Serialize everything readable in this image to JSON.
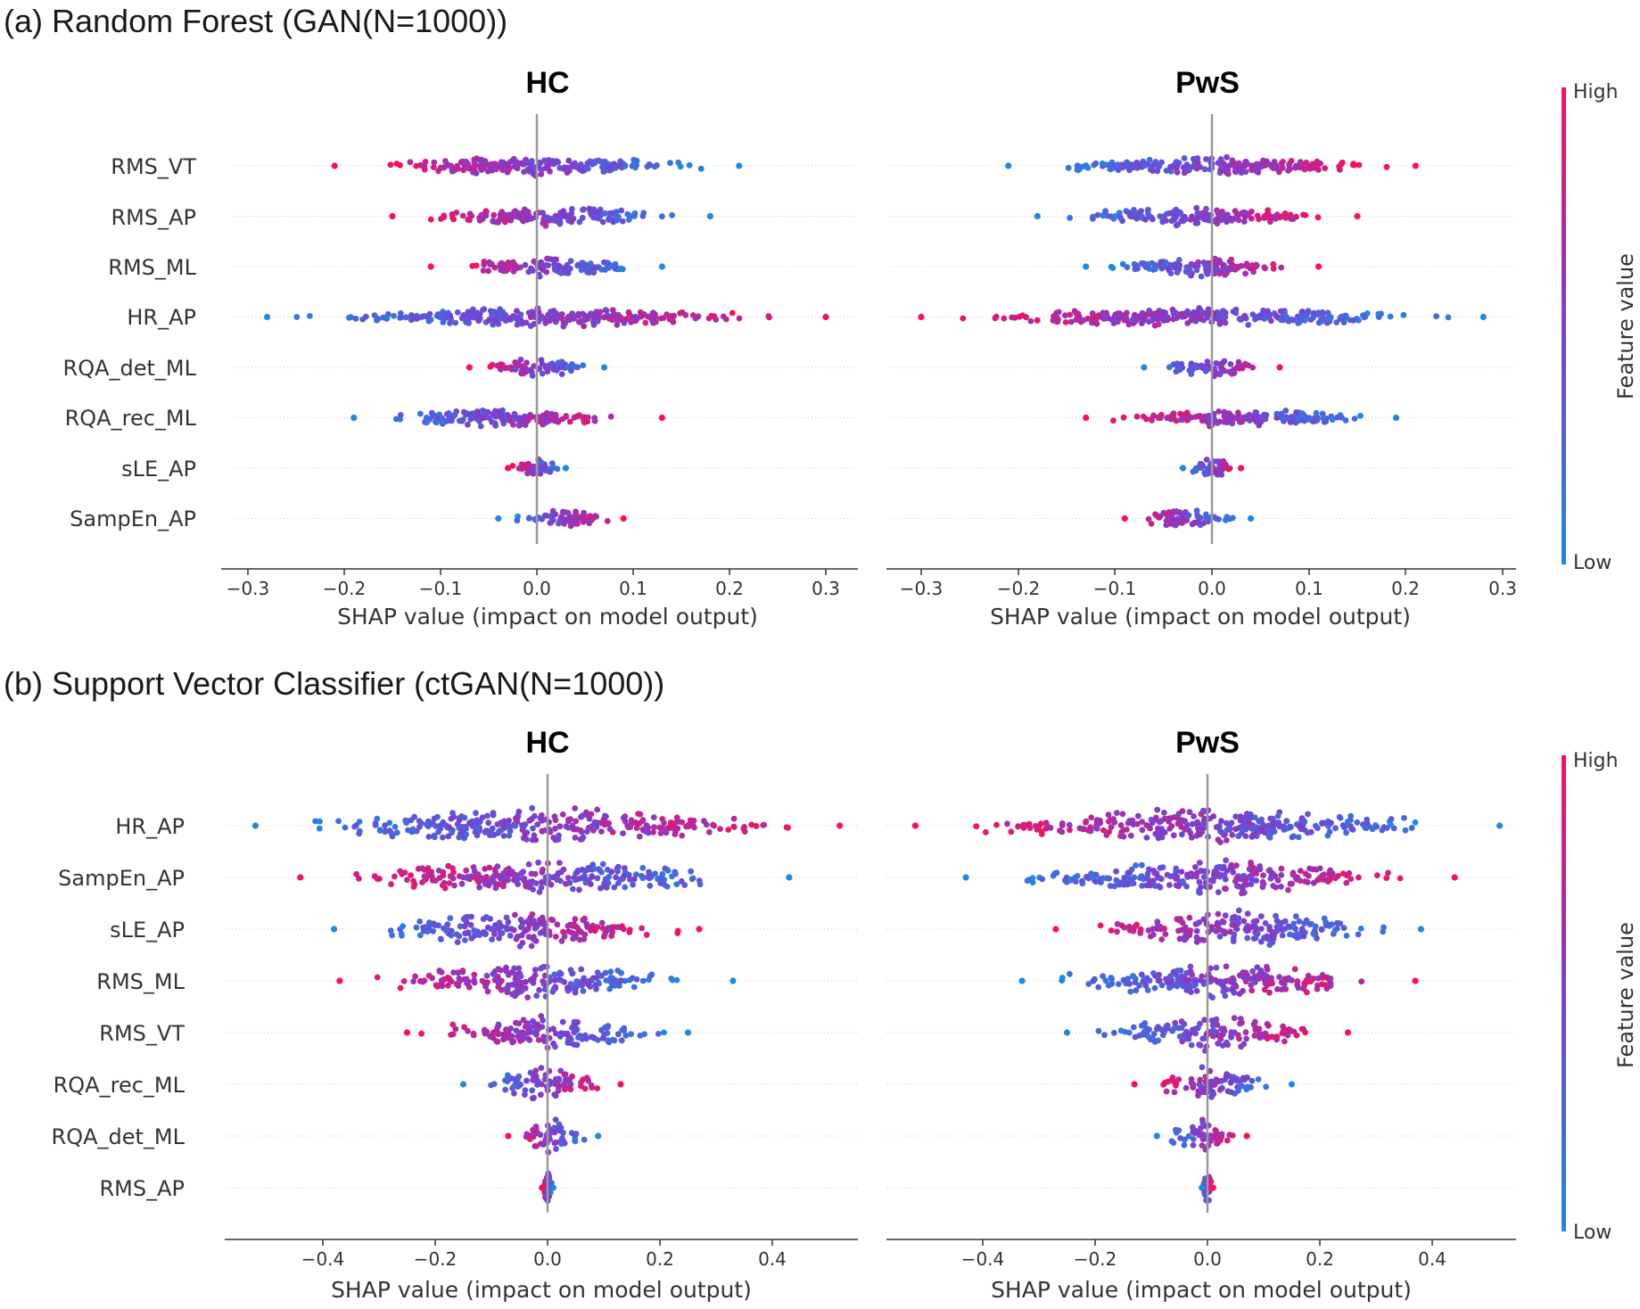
{
  "colors": {
    "low": "#1E88E5",
    "mid": "#7B3FD1",
    "high": "#FF0D57",
    "zero_line": "#999999",
    "grid": "#cccccc"
  },
  "chart_data": [
    {
      "type": "scatter",
      "section": "a",
      "section_title": "(a) Random Forest (GAN(N=1000))",
      "title": "HC",
      "xlabel": "SHAP value (impact on model output)",
      "xlim": [
        -0.3,
        0.3
      ],
      "xticks": [
        "−0.3",
        "−0.2",
        "−0.1",
        "0.0",
        "0.1",
        "0.2",
        "0.3"
      ],
      "features": [
        {
          "name": "RMS_VT",
          "left_value": -0.21,
          "right_value": 0.21,
          "left_color": "high",
          "right_color": "low"
        },
        {
          "name": "RMS_AP",
          "left_value": -0.15,
          "right_value": 0.18,
          "left_color": "high",
          "right_color": "low"
        },
        {
          "name": "RMS_ML",
          "left_value": -0.11,
          "right_value": 0.13,
          "left_color": "high",
          "right_color": "low"
        },
        {
          "name": "HR_AP",
          "left_value": -0.28,
          "right_value": 0.3,
          "left_color": "low",
          "right_color": "high"
        },
        {
          "name": "RQA_det_ML",
          "left_value": -0.07,
          "right_value": 0.07,
          "left_color": "high",
          "right_color": "low"
        },
        {
          "name": "RQA_rec_ML",
          "left_value": -0.19,
          "right_value": 0.13,
          "left_color": "low",
          "right_color": "high"
        },
        {
          "name": "sLE_AP",
          "left_value": -0.03,
          "right_value": 0.03,
          "left_color": "high",
          "right_color": "low"
        },
        {
          "name": "SampEn_AP",
          "left_value": -0.04,
          "right_value": 0.09,
          "left_color": "low",
          "right_color": "high"
        }
      ],
      "colorbar": {
        "title": "Feature value",
        "high": "High",
        "low": "Low"
      }
    },
    {
      "type": "scatter",
      "section": "a",
      "title": "PwS",
      "xlabel": "SHAP value (impact on model output)",
      "xlim": [
        -0.3,
        0.3
      ],
      "xticks": [
        "−0.3",
        "−0.2",
        "−0.1",
        "0.0",
        "0.1",
        "0.2",
        "0.3"
      ],
      "features": [
        {
          "name": "RMS_VT",
          "left_value": -0.21,
          "right_value": 0.21,
          "left_color": "low",
          "right_color": "high"
        },
        {
          "name": "RMS_AP",
          "left_value": -0.18,
          "right_value": 0.15,
          "left_color": "low",
          "right_color": "high"
        },
        {
          "name": "RMS_ML",
          "left_value": -0.13,
          "right_value": 0.11,
          "left_color": "low",
          "right_color": "high"
        },
        {
          "name": "HR_AP",
          "left_value": -0.3,
          "right_value": 0.28,
          "left_color": "high",
          "right_color": "low"
        },
        {
          "name": "RQA_det_ML",
          "left_value": -0.07,
          "right_value": 0.07,
          "left_color": "low",
          "right_color": "high"
        },
        {
          "name": "RQA_rec_ML",
          "left_value": -0.13,
          "right_value": 0.19,
          "left_color": "high",
          "right_color": "low"
        },
        {
          "name": "sLE_AP",
          "left_value": -0.03,
          "right_value": 0.03,
          "left_color": "low",
          "right_color": "high"
        },
        {
          "name": "SampEn_AP",
          "left_value": -0.09,
          "right_value": 0.04,
          "left_color": "high",
          "right_color": "low"
        }
      ],
      "colorbar": {
        "title": "Feature value",
        "high": "High",
        "low": "Low"
      }
    },
    {
      "type": "scatter",
      "section": "b",
      "section_title": "(b) Support Vector Classifier (ctGAN(N=1000))",
      "title": "HC",
      "xlabel": "SHAP value (impact on model output)",
      "xlim": [
        -0.6,
        0.55
      ],
      "xticks": [
        "−0.4",
        "−0.2",
        "0.0",
        "0.2",
        "0.4"
      ],
      "features": [
        {
          "name": "HR_AP",
          "left_value": -0.52,
          "right_value": 0.52,
          "left_color": "low",
          "right_color": "high"
        },
        {
          "name": "SampEn_AP",
          "left_value": -0.44,
          "right_value": 0.43,
          "left_color": "high",
          "right_color": "low"
        },
        {
          "name": "sLE_AP",
          "left_value": -0.38,
          "right_value": 0.27,
          "left_color": "low",
          "right_color": "high"
        },
        {
          "name": "RMS_ML",
          "left_value": -0.37,
          "right_value": 0.33,
          "left_color": "high",
          "right_color": "low"
        },
        {
          "name": "RMS_VT",
          "left_value": -0.25,
          "right_value": 0.25,
          "left_color": "high",
          "right_color": "low"
        },
        {
          "name": "RQA_rec_ML",
          "left_value": -0.15,
          "right_value": 0.13,
          "left_color": "low",
          "right_color": "high"
        },
        {
          "name": "RQA_det_ML",
          "left_value": -0.07,
          "right_value": 0.09,
          "left_color": "high",
          "right_color": "low"
        },
        {
          "name": "RMS_AP",
          "left_value": -0.01,
          "right_value": 0.01,
          "left_color": "high",
          "right_color": "low"
        }
      ],
      "colorbar": {
        "title": "Feature value",
        "high": "High",
        "low": "Low"
      }
    },
    {
      "type": "scatter",
      "section": "b",
      "title": "PwS",
      "xlabel": "SHAP value (impact on model output)",
      "xlim": [
        -0.6,
        0.55
      ],
      "xticks": [
        "−0.4",
        "−0.2",
        "0.0",
        "0.2",
        "0.4"
      ],
      "features": [
        {
          "name": "HR_AP",
          "left_value": -0.52,
          "right_value": 0.52,
          "left_color": "high",
          "right_color": "low"
        },
        {
          "name": "SampEn_AP",
          "left_value": -0.43,
          "right_value": 0.44,
          "left_color": "low",
          "right_color": "high"
        },
        {
          "name": "sLE_AP",
          "left_value": -0.27,
          "right_value": 0.38,
          "left_color": "high",
          "right_color": "low"
        },
        {
          "name": "RMS_ML",
          "left_value": -0.33,
          "right_value": 0.37,
          "left_color": "low",
          "right_color": "high"
        },
        {
          "name": "RMS_VT",
          "left_value": -0.25,
          "right_value": 0.25,
          "left_color": "low",
          "right_color": "high"
        },
        {
          "name": "RQA_rec_ML",
          "left_value": -0.13,
          "right_value": 0.15,
          "left_color": "high",
          "right_color": "low"
        },
        {
          "name": "RQA_det_ML",
          "left_value": -0.09,
          "right_value": 0.07,
          "left_color": "low",
          "right_color": "high"
        },
        {
          "name": "RMS_AP",
          "left_value": -0.01,
          "right_value": 0.01,
          "left_color": "low",
          "right_color": "high"
        }
      ],
      "colorbar": {
        "title": "Feature value",
        "high": "High",
        "low": "Low"
      }
    }
  ]
}
